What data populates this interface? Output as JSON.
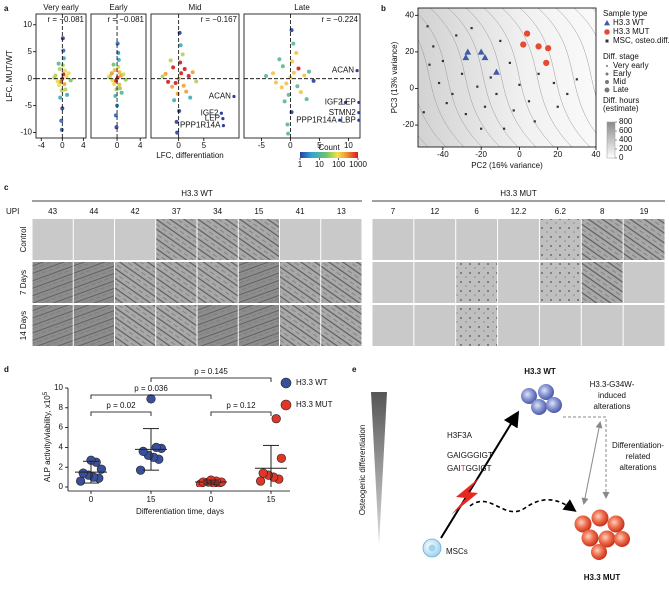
{
  "panel_labels": [
    "a",
    "b",
    "c",
    "d",
    "e"
  ],
  "chart_data": [
    {
      "type": "scatter",
      "title": "Very early",
      "annotation": "r = −0.081",
      "xlim": [
        -5,
        4.5
      ],
      "xticks": [
        -4,
        0,
        4
      ],
      "ylim": [
        -11,
        12
      ],
      "yticks": [
        10,
        5,
        0,
        -5,
        -10
      ],
      "x": [
        0,
        0.2,
        -0.3,
        0.5,
        -0.6,
        0.1,
        -0.1,
        0.8,
        -0.9,
        0.3,
        -0.4,
        1.2,
        -1.3,
        0.0,
        0.6,
        -0.7,
        0.2,
        -0.2,
        1.6,
        -1.5,
        0.4,
        -0.5,
        0.1,
        -0.1,
        0.9
      ],
      "y": [
        0,
        0.8,
        -0.6,
        1.5,
        -1.2,
        2.5,
        -2.2,
        0.4,
        -0.5,
        3.8,
        -3.5,
        1.0,
        0.6,
        -5.5,
        -2.0,
        2.8,
        5.2,
        -7.8,
        -0.3,
        0.2,
        -1.0,
        1.8,
        7.5,
        -9.5,
        -3.0
      ]
    },
    {
      "type": "scatter",
      "title": "Early",
      "annotation": "r = −0.081",
      "xlim": [
        -4.5,
        5
      ],
      "xticks": [
        0,
        4
      ],
      "ylim": [
        -11,
        12
      ],
      "x": [
        0.1,
        -0.2,
        0.4,
        -0.5,
        0.2,
        -0.1,
        0.7,
        -0.8,
        0.3,
        -0.3,
        1.1,
        -1.2,
        0.0,
        0.5,
        -0.6,
        0.2,
        -0.2,
        1.5,
        -1.4,
        0.4,
        -0.4,
        0.1,
        -0.1,
        0.8,
        -0.9
      ],
      "y": [
        0.2,
        -0.4,
        1.2,
        -1.0,
        2.2,
        -2.0,
        0.6,
        -0.3,
        3.5,
        -3.2,
        0.8,
        0.5,
        -5.0,
        -1.8,
        2.6,
        4.8,
        -6.8,
        -0.2,
        0.3,
        -1.1,
        1.6,
        6.5,
        -9.0,
        -2.6,
        1.0
      ]
    },
    {
      "type": "scatter",
      "title": "Mid",
      "annotation": "r = −0.167",
      "xlim": [
        -5.5,
        12
      ],
      "xticks": [
        0,
        5
      ],
      "ylim": [
        -11,
        12
      ],
      "x": [
        0,
        0.5,
        -0.6,
        1.2,
        -1.3,
        0.3,
        -0.2,
        2.0,
        -2.1,
        0.8,
        -0.9,
        2.8,
        -2.6,
        0.1,
        1.5,
        -1.6,
        0.4,
        -0.4,
        3.5,
        -3.2,
        1.0,
        -1.1,
        0.2,
        -0.3,
        2.3
      ],
      "y": [
        0,
        1.0,
        -0.8,
        1.8,
        -1.5,
        3.0,
        -2.8,
        0.5,
        -0.6,
        4.5,
        -4.0,
        1.2,
        0.9,
        -6.0,
        -2.4,
        3.4,
        6.2,
        -8.0,
        -0.5,
        0.4,
        -1.3,
        2.1,
        8.5,
        -10.0,
        -3.5
      ],
      "labeled_points": {
        "labels": [
          "ACAN",
          "IGF2",
          "LEP",
          "PPP1R14A"
        ],
        "x": [
          11.0,
          8.5,
          8.8,
          8.9
        ],
        "y": [
          -3.3,
          -6.4,
          -7.4,
          -8.7
        ]
      }
    },
    {
      "type": "scatter",
      "title": "Late",
      "annotation": "r = −0.224",
      "xlim": [
        -8,
        12
      ],
      "xticks": [
        -5,
        0,
        5,
        10
      ],
      "ylim": [
        -11,
        12
      ],
      "x": [
        0,
        0.6,
        -0.7,
        1.4,
        -1.5,
        0.3,
        -0.3,
        2.4,
        -2.5,
        1.0,
        -1.0,
        3.2,
        -3.0,
        0.2,
        1.8,
        -1.9,
        0.5,
        -0.5,
        4.0,
        -4.2,
        1.2,
        -1.3,
        0.2,
        -0.4,
        2.8
      ],
      "y": [
        0.2,
        1.1,
        -0.9,
        1.9,
        -1.6,
        3.2,
        -3.0,
        0.6,
        -0.7,
        4.8,
        -4.2,
        1.3,
        1.0,
        -6.2,
        -2.5,
        3.6,
        6.5,
        -8.5,
        -0.4,
        0.5,
        -1.4,
        2.3,
        9.0,
        -10.2,
        -3.8
      ],
      "labeled_points": {
        "labels": [
          "ACAN",
          "IGF2",
          "LEP",
          "STMN2",
          "LBP",
          "PPP1R14A"
        ],
        "x": [
          11.5,
          9.5,
          11.8,
          11.8,
          11.8,
          8.5
        ],
        "y": [
          1.5,
          -4.4,
          -4.4,
          -6.3,
          -7.7,
          -7.7
        ]
      }
    },
    {
      "type": "scatter",
      "xlabel": "PC2 (16% variance)",
      "ylabel": "PC3 (13% variance)",
      "xlim": [
        -53,
        40
      ],
      "xticks": [
        -40,
        -20,
        0,
        20,
        40
      ],
      "ylim": [
        -32,
        44
      ],
      "yticks": [
        -20,
        0,
        20,
        40
      ],
      "legend_title": "Sample type",
      "series": [
        {
          "name": "H3.3 WT",
          "color": "#3d5ca8",
          "marker": "triangle",
          "x": [
            -27,
            -20,
            -18,
            -28,
            -12
          ],
          "y": [
            20,
            20,
            17,
            17,
            9
          ]
        },
        {
          "name": "H3.3 MUT",
          "color": "#e64a32",
          "marker": "circle",
          "x": [
            4,
            2,
            10,
            15,
            14
          ],
          "y": [
            30,
            24,
            23,
            22,
            14
          ]
        },
        {
          "name": "MSC, osteo.diff.",
          "color": "#333333",
          "marker": "square",
          "x": [
            -48,
            -45,
            -47,
            -42,
            -38,
            -50,
            -33,
            -30,
            -35,
            -40,
            -25,
            -22,
            -18,
            -15,
            -10,
            -12,
            -5,
            -3,
            0,
            5,
            10,
            8,
            18,
            20,
            25,
            -28,
            -20,
            14,
            -8,
            30
          ],
          "y": [
            34,
            23,
            13,
            3,
            -8,
            -13,
            29,
            8,
            -3,
            15,
            33,
            1,
            -10,
            6,
            26,
            -3,
            14,
            -12,
            2,
            -7,
            8,
            -18,
            3,
            -10,
            -3,
            -14,
            -22,
            14,
            -22,
            5
          ]
        }
      ],
      "stage_legend": {
        "title": "Diff. stage",
        "levels": [
          "Very early",
          "Early",
          "Mid",
          "Late"
        ]
      },
      "hours_legend": {
        "title": [
          "Diff. hours",
          "(estimate)"
        ],
        "range": [
          0,
          800
        ],
        "ticks": [
          0,
          200,
          400,
          600,
          800
        ]
      }
    },
    {
      "type": "strip",
      "ylabel": "ALP activity/viability, x10",
      "ylabel_exponent": "5",
      "xlabel": "Differentiation time, days",
      "categories": [
        "0",
        "15",
        "0",
        "15"
      ],
      "ylim": [
        0,
        10
      ],
      "yticks": [
        0,
        2,
        4,
        6,
        8,
        10
      ],
      "series": [
        {
          "name": "H3.3 WT",
          "color": "#3a4f9a",
          "values": [
            [
              0.6,
              0.9,
              1.0,
              1.2,
              1.4,
              1.8,
              2.5,
              2.7
            ],
            [
              1.7,
              2.8,
              3.0,
              3.2,
              3.6,
              3.9,
              4.0,
              8.9
            ],
            null,
            null
          ],
          "mean": [
            1.5,
            3.8,
            null,
            null
          ],
          "error": [
            1.1,
            2.1,
            null,
            null
          ]
        },
        {
          "name": "H3.3 MUT",
          "color": "#e0362a",
          "values": [
            null,
            null,
            [
              0.3,
              0.4,
              0.4,
              0.5,
              0.5,
              0.5,
              0.6,
              0.7
            ],
            [
              0.6,
              0.8,
              1.0,
              1.2,
              1.4,
              2.9,
              6.9
            ]
          ],
          "mean": [
            null,
            null,
            0.5,
            1.9
          ],
          "error": [
            null,
            null,
            0.2,
            2.3
          ]
        }
      ],
      "comparisons": [
        "p = 0.145",
        "p = 0.036",
        "p = 0.02",
        "p = 0.12"
      ]
    }
  ],
  "panel_a": {
    "ylabel": "LFC, MUT/WT",
    "xlabel": "LFC, differentiation",
    "colorbar": {
      "title": "Count",
      "scale": "log",
      "range": [
        1,
        1000
      ],
      "ticks": [
        1,
        10,
        100,
        1000
      ]
    }
  },
  "panel_c": {
    "upi_label": "UPI",
    "rows": [
      "Control",
      "7 Days",
      "14 Days"
    ],
    "groups": [
      {
        "title": "H3.3 WT",
        "upi": [
          "43",
          "44",
          "42",
          "37",
          "34",
          "15",
          "41",
          "13"
        ]
      },
      {
        "title": "H3.3 MUT",
        "upi": [
          "7",
          "12",
          "6",
          "12.2",
          "6.2",
          "8",
          "19"
        ]
      }
    ]
  },
  "panel_e": {
    "axis_label": "Osteogenic differentiation",
    "gene": "H3F3A",
    "wt_sequence": "GAIGGGIGT",
    "mutant_sequence": [
      "GAI",
      "T",
      "GGIGT"
    ],
    "wt_label": "H3.3 WT",
    "mut_label": "H3.3 MUT",
    "origin_label": "MSCs",
    "mutation_effect": [
      "H3.3-G34W-",
      "induced",
      "alterations"
    ],
    "differentiation_effect": [
      "Differentiation-",
      "related",
      "alterations"
    ]
  }
}
